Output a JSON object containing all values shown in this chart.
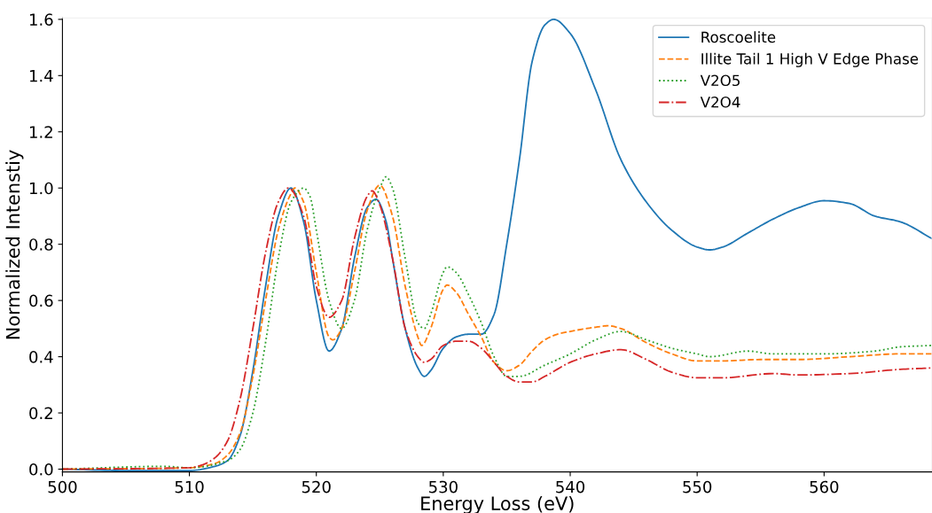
{
  "chart_data": {
    "type": "line",
    "xlabel": "Energy Loss (eV)",
    "ylabel": "Normalized Intenstiy",
    "xlim": [
      500,
      568.5
    ],
    "xticks": [
      500,
      510,
      520,
      530,
      540,
      550,
      560
    ],
    "ylim": [
      -0.01,
      1.605
    ],
    "yticks": [
      {
        "value": 0,
        "label": "0.0"
      },
      0.2,
      0.4,
      0.6,
      0.8,
      {
        "value": 1,
        "label": "1.0"
      },
      1.2,
      1.4,
      1.6
    ],
    "legend": "top right",
    "grid": false,
    "marker": "none",
    "series": [
      {
        "name": "Roscoelite",
        "color": "#1f77b4",
        "line_style": "solid",
        "x": [
          500,
          505,
          510,
          512,
          513,
          514,
          515,
          516,
          517,
          518,
          519,
          520,
          521,
          522,
          523,
          524,
          524.7,
          525.5,
          526,
          527,
          528,
          528.5,
          529,
          530,
          531,
          532,
          533,
          534,
          535,
          536,
          537,
          538,
          538.7,
          540,
          542,
          544,
          546,
          548,
          550,
          551,
          552,
          554,
          556,
          558,
          560,
          562,
          564,
          566,
          568.5
        ],
        "values": [
          0,
          -0.005,
          -0.005,
          0.01,
          0.03,
          0.12,
          0.35,
          0.65,
          0.9,
          1.0,
          0.88,
          0.6,
          0.42,
          0.5,
          0.75,
          0.93,
          0.96,
          0.88,
          0.75,
          0.5,
          0.36,
          0.33,
          0.35,
          0.43,
          0.47,
          0.48,
          0.48,
          0.55,
          0.8,
          1.1,
          1.45,
          1.58,
          1.6,
          1.55,
          1.35,
          1.1,
          0.95,
          0.85,
          0.79,
          0.78,
          0.79,
          0.84,
          0.89,
          0.93,
          0.955,
          0.945,
          0.9,
          0.88,
          0.82
        ]
      },
      {
        "name": "Illite Tail 1 High V Edge Phase",
        "color": "#ff7f0e",
        "line_style": "dashed",
        "x": [
          500,
          510,
          512,
          513,
          514,
          515,
          516,
          517,
          518,
          518.3,
          519,
          520,
          521,
          521.3,
          522,
          523,
          524,
          525,
          526,
          527,
          528,
          528.3,
          529,
          530,
          530.3,
          531,
          532,
          533,
          534,
          535,
          536,
          537,
          538,
          539,
          540,
          542,
          543,
          544,
          546,
          548,
          550,
          552,
          555,
          558,
          562,
          566,
          568.5
        ],
        "values": [
          0,
          0.005,
          0.02,
          0.05,
          0.13,
          0.33,
          0.6,
          0.85,
          0.98,
          1.0,
          0.95,
          0.7,
          0.47,
          0.46,
          0.5,
          0.7,
          0.92,
          1.01,
          0.9,
          0.65,
          0.47,
          0.44,
          0.5,
          0.64,
          0.655,
          0.63,
          0.55,
          0.47,
          0.38,
          0.35,
          0.37,
          0.42,
          0.46,
          0.48,
          0.49,
          0.505,
          0.51,
          0.5,
          0.45,
          0.41,
          0.385,
          0.385,
          0.39,
          0.39,
          0.4,
          0.41,
          0.41
        ]
      },
      {
        "name": "V2O5",
        "color": "#2ca02c",
        "line_style": "dotted",
        "x": [
          500,
          508,
          510,
          513,
          514,
          515,
          516,
          517,
          518,
          519,
          519.5,
          520,
          521,
          522,
          523,
          524,
          525,
          525.5,
          526,
          527,
          528,
          528.5,
          529,
          530,
          530.3,
          531,
          532,
          533,
          534,
          535,
          536,
          538,
          540,
          542,
          544,
          546,
          548,
          550,
          551,
          554,
          556,
          560,
          564,
          566,
          568.5
        ],
        "values": [
          0,
          0.01,
          0.005,
          0.03,
          0.07,
          0.2,
          0.45,
          0.75,
          0.95,
          1.0,
          0.97,
          0.85,
          0.6,
          0.5,
          0.6,
          0.85,
          1.0,
          1.04,
          1.0,
          0.75,
          0.52,
          0.5,
          0.55,
          0.7,
          0.72,
          0.7,
          0.62,
          0.52,
          0.4,
          0.33,
          0.33,
          0.37,
          0.41,
          0.46,
          0.49,
          0.46,
          0.43,
          0.41,
          0.4,
          0.42,
          0.41,
          0.41,
          0.42,
          0.435,
          0.44
        ]
      },
      {
        "name": "V2O4",
        "color": "#d62728",
        "line_style": "dashdot",
        "x": [
          500,
          510,
          511,
          512,
          513,
          514,
          515,
          516,
          517,
          517.8,
          519,
          520,
          521,
          522,
          523,
          524,
          524.4,
          525,
          526,
          527,
          528,
          528.5,
          529,
          530,
          531,
          532,
          533,
          534,
          535,
          536,
          537,
          538,
          540,
          542,
          544,
          546,
          548,
          550,
          552,
          556,
          558,
          562,
          566,
          568.5
        ],
        "values": [
          0,
          0.005,
          0.015,
          0.04,
          0.1,
          0.25,
          0.5,
          0.77,
          0.95,
          1.0,
          0.9,
          0.65,
          0.54,
          0.6,
          0.82,
          0.97,
          0.99,
          0.94,
          0.75,
          0.5,
          0.4,
          0.38,
          0.39,
          0.44,
          0.455,
          0.455,
          0.43,
          0.38,
          0.33,
          0.31,
          0.31,
          0.33,
          0.38,
          0.41,
          0.425,
          0.39,
          0.345,
          0.325,
          0.325,
          0.34,
          0.335,
          0.34,
          0.355,
          0.36
        ]
      }
    ]
  }
}
